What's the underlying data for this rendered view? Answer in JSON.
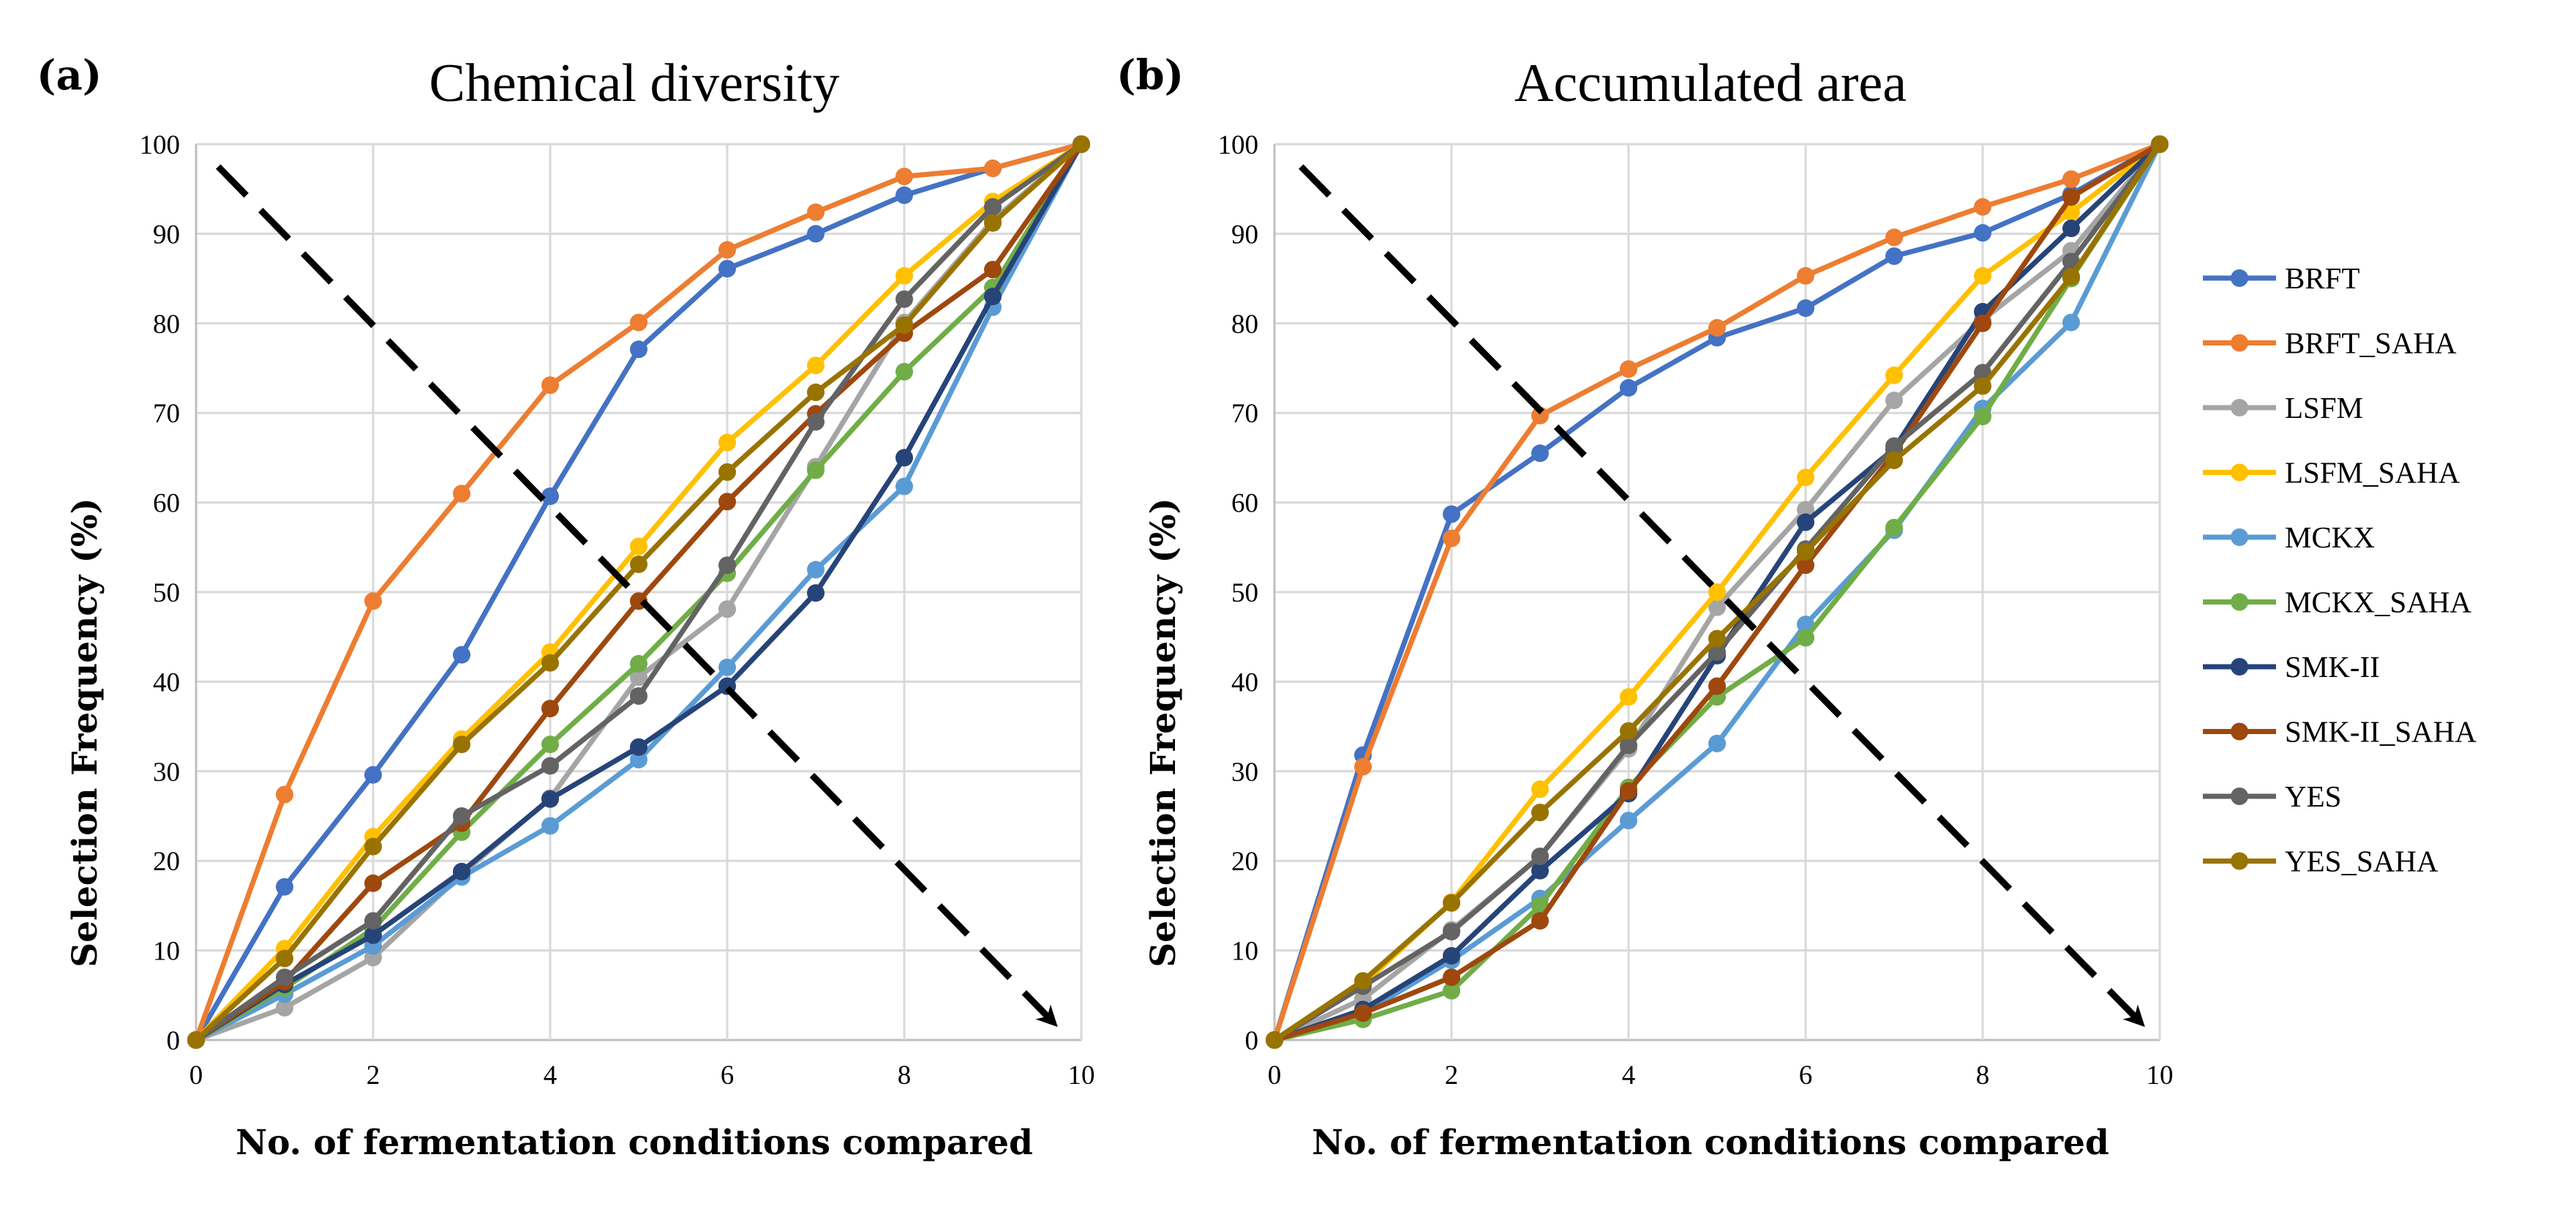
{
  "chart_data": [
    {
      "type": "line",
      "panel_label": "(a)",
      "title": "Chemical diversity",
      "xlabel": "No. of fermentation conditions compared",
      "ylabel": "Selection Frequency (%)",
      "xlim": [
        0,
        10
      ],
      "ylim": [
        0,
        100
      ],
      "x_ticks": [
        0,
        2,
        4,
        6,
        8,
        10
      ],
      "y_ticks": [
        0,
        10,
        20,
        30,
        40,
        50,
        60,
        70,
        80,
        90,
        100
      ],
      "grid": true,
      "x": [
        0,
        1,
        2,
        3,
        4,
        5,
        6,
        7,
        8,
        9,
        10
      ],
      "series": [
        {
          "name": "BRFT",
          "color": "#4472c4",
          "values": [
            0,
            17.1,
            29.6,
            43.0,
            60.7,
            77.1,
            86.1,
            90.0,
            94.3,
            97.3,
            100
          ]
        },
        {
          "name": "BRFT_SAHA",
          "color": "#ed7d31",
          "values": [
            0,
            27.4,
            49.0,
            61.0,
            73.1,
            80.1,
            88.2,
            92.4,
            96.4,
            97.3,
            100
          ]
        },
        {
          "name": "LSFM",
          "color": "#a5a5a5",
          "values": [
            0,
            3.6,
            9.2,
            18.5,
            27.0,
            40.5,
            48.1,
            64.0,
            80.1,
            91.5,
            100
          ]
        },
        {
          "name": "LSFM_SAHA",
          "color": "#ffc000",
          "values": [
            0,
            10.2,
            22.7,
            33.6,
            43.3,
            55.1,
            66.7,
            75.3,
            85.3,
            93.6,
            100
          ]
        },
        {
          "name": "MCKX",
          "color": "#5b9bd5",
          "values": [
            0,
            5.1,
            10.5,
            18.2,
            23.9,
            31.3,
            41.6,
            52.5,
            61.8,
            81.8,
            100
          ]
        },
        {
          "name": "MCKX_SAHA",
          "color": "#70ad47",
          "values": [
            0,
            5.8,
            12.4,
            23.2,
            33.0,
            42.0,
            52.1,
            63.6,
            74.6,
            84.0,
            100
          ]
        },
        {
          "name": "SMK-II",
          "color": "#264478",
          "values": [
            0,
            6.2,
            11.7,
            18.8,
            26.9,
            32.7,
            39.5,
            49.9,
            65.0,
            83.0,
            100
          ]
        },
        {
          "name": "SMK-II_SAHA",
          "color": "#9e480e",
          "values": [
            0,
            6.5,
            17.5,
            24.2,
            37.0,
            49.0,
            60.1,
            69.9,
            78.9,
            86.0,
            100
          ]
        },
        {
          "name": "YES",
          "color": "#636363",
          "values": [
            0,
            7.0,
            13.3,
            25.0,
            30.6,
            38.4,
            53.0,
            69.0,
            82.7,
            93.0,
            100
          ]
        },
        {
          "name": "YES_SAHA",
          "color": "#997300",
          "values": [
            0,
            9.1,
            21.6,
            33.0,
            42.1,
            53.1,
            63.4,
            72.3,
            79.8,
            91.2,
            100
          ]
        }
      ],
      "annotations": [
        {
          "type": "dashed-arrow",
          "from": [
            0.25,
            97.5
          ],
          "to": [
            9.7,
            1.8
          ]
        }
      ]
    },
    {
      "type": "line",
      "panel_label": "(b)",
      "title": "Accumulated area",
      "xlabel": "No. of fermentation conditions compared",
      "ylabel": "Selection Frequency (%)",
      "xlim": [
        0,
        10
      ],
      "ylim": [
        0,
        100
      ],
      "x_ticks": [
        0,
        2,
        4,
        6,
        8,
        10
      ],
      "y_ticks": [
        0,
        10,
        20,
        30,
        40,
        50,
        60,
        70,
        80,
        90,
        100
      ],
      "grid": true,
      "x": [
        0,
        1,
        2,
        3,
        4,
        5,
        6,
        7,
        8,
        9,
        10
      ],
      "series": [
        {
          "name": "BRFT",
          "color": "#4472c4",
          "values": [
            0,
            31.8,
            58.7,
            65.5,
            72.8,
            78.4,
            81.7,
            87.5,
            90.1,
            94.4,
            100
          ]
        },
        {
          "name": "BRFT_SAHA",
          "color": "#ed7d31",
          "values": [
            0,
            30.5,
            56.0,
            69.7,
            74.9,
            79.5,
            85.3,
            89.6,
            93.0,
            96.1,
            100
          ]
        },
        {
          "name": "LSFM",
          "color": "#a5a5a5",
          "values": [
            0,
            4.6,
            12.3,
            20.5,
            32.5,
            48.3,
            59.2,
            71.4,
            80.4,
            88.1,
            100
          ]
        },
        {
          "name": "LSFM_SAHA",
          "color": "#ffc000",
          "values": [
            0,
            6.2,
            15.4,
            28.0,
            38.3,
            50.0,
            62.8,
            74.2,
            85.3,
            92.4,
            100
          ]
        },
        {
          "name": "MCKX",
          "color": "#5b9bd5",
          "values": [
            0,
            3.0,
            8.9,
            15.8,
            24.5,
            33.1,
            46.4,
            56.9,
            70.5,
            80.1,
            100
          ]
        },
        {
          "name": "MCKX_SAHA",
          "color": "#70ad47",
          "values": [
            0,
            2.3,
            5.5,
            15.0,
            28.2,
            38.3,
            44.9,
            57.2,
            69.6,
            85.0,
            100
          ]
        },
        {
          "name": "SMK-II",
          "color": "#264478",
          "values": [
            0,
            3.4,
            9.4,
            18.9,
            27.5,
            42.9,
            57.8,
            66.0,
            81.3,
            90.6,
            100
          ]
        },
        {
          "name": "SMK-II_SAHA",
          "color": "#9e480e",
          "values": [
            0,
            3.0,
            7.0,
            13.3,
            27.8,
            39.5,
            53.0,
            65.5,
            80.0,
            94.1,
            100
          ]
        },
        {
          "name": "YES",
          "color": "#636363",
          "values": [
            0,
            6.0,
            12.1,
            20.5,
            32.9,
            43.3,
            54.8,
            66.3,
            74.5,
            86.9,
            100
          ]
        },
        {
          "name": "YES_SAHA",
          "color": "#997300",
          "values": [
            0,
            6.6,
            15.3,
            25.4,
            34.5,
            44.8,
            54.5,
            64.7,
            73.0,
            85.2,
            100
          ]
        }
      ],
      "annotations": [
        {
          "type": "dashed-arrow",
          "from": [
            0.3,
            97.5
          ],
          "to": [
            9.8,
            1.8
          ]
        }
      ]
    }
  ]
}
